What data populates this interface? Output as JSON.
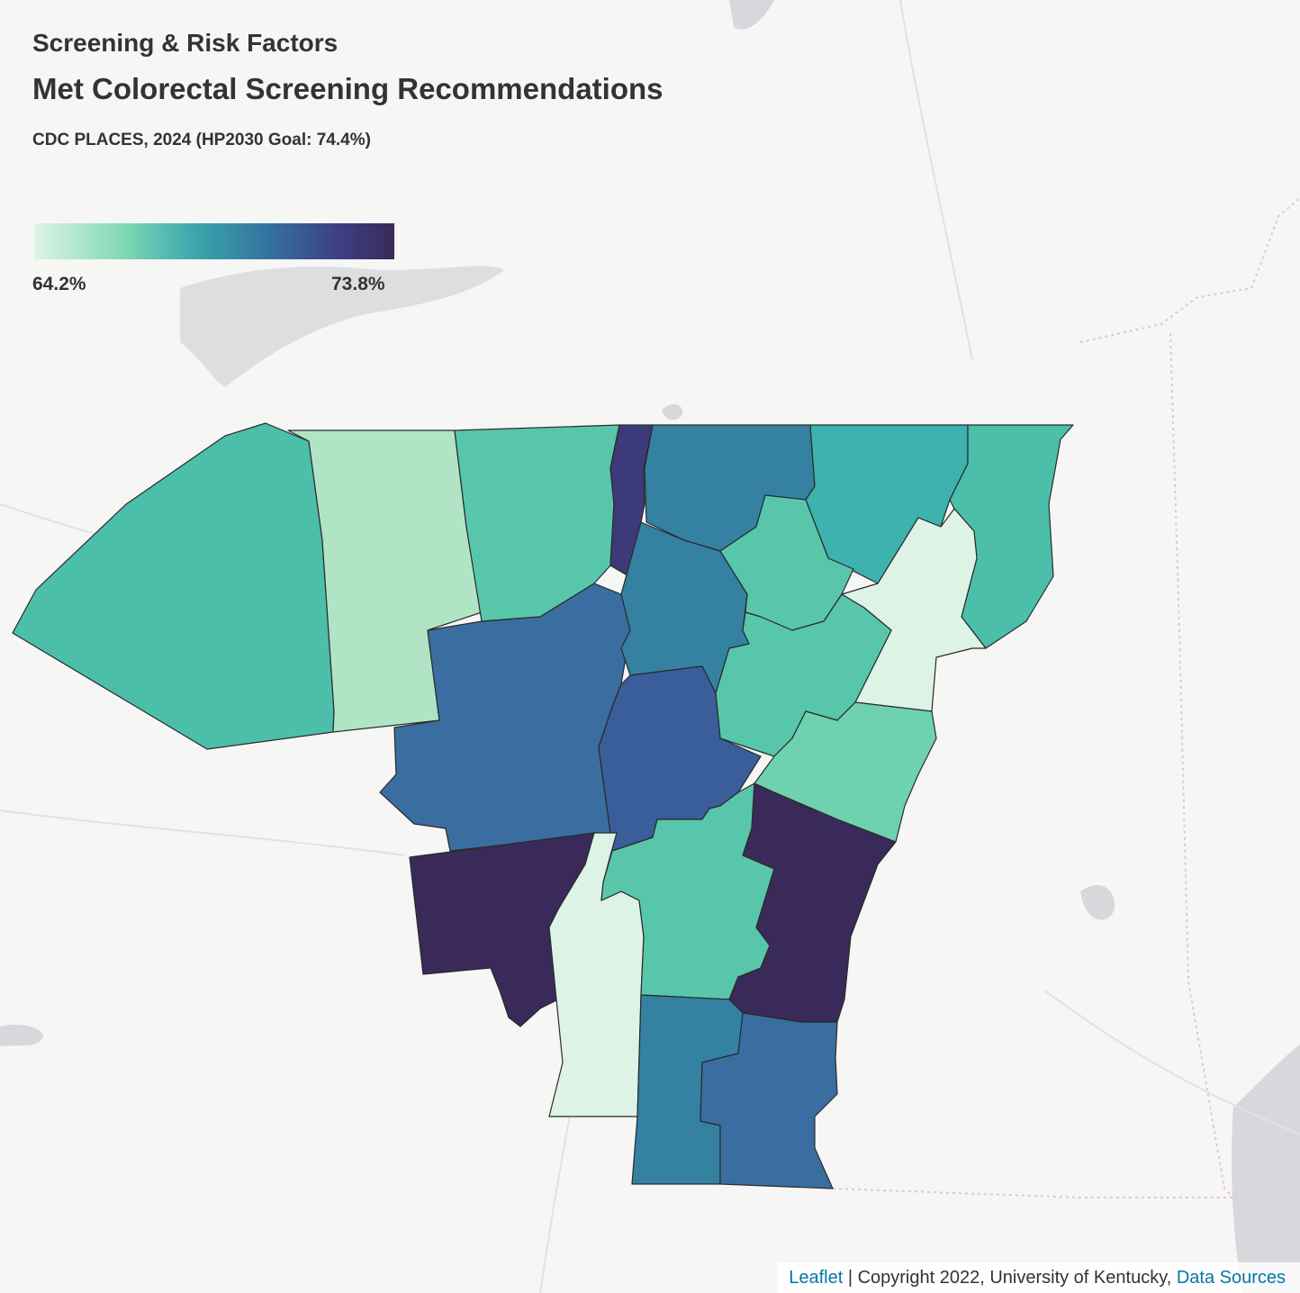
{
  "header": {
    "section_title": "Screening & Risk Factors",
    "map_title": "Met Colorectal Screening Recommendations",
    "subtitle": "CDC PLACES, 2024 (HP2030 Goal: 74.4%)"
  },
  "legend": {
    "min_label": "64.2%",
    "max_label": "73.8%",
    "color_scale": [
      "#dff4e6",
      "#7fd8b4",
      "#3aa5ac",
      "#3472a0",
      "#3d3e82",
      "#3a2a5a"
    ]
  },
  "attribution": {
    "leaflet_link": "Leaflet",
    "separator": " | ",
    "copyright": "Copyright 2022, University of Kentucky, ",
    "sources_link": "Data Sources"
  },
  "map_layers": {
    "basemap_water_color": "#d4d6d9",
    "basemap_land_color": "#f6f6f5",
    "county_fill_colors": {
      "lightest": "#dcf3e6",
      "light": "#b0e4c5",
      "pale_green": "#6ed1b0",
      "teal_green": "#58c6ab",
      "teal": "#3db2ae",
      "steel_teal": "#3481a2",
      "steel_blue": "#3a6ea0",
      "blue_indigo": "#3a5e9a",
      "indigo": "#3d3a79",
      "deep_indigo": "#3a2a5a"
    }
  }
}
